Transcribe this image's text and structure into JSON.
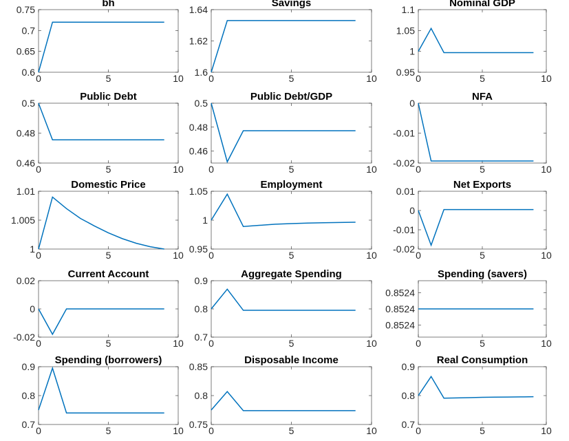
{
  "chart_data": [
    {
      "type": "line",
      "title": "bh",
      "x": [
        0,
        1,
        2,
        3,
        4,
        5,
        6,
        7,
        8,
        9
      ],
      "values": [
        0.6,
        0.72,
        0.72,
        0.72,
        0.72,
        0.72,
        0.72,
        0.72,
        0.72,
        0.72
      ],
      "color": "#0072bd",
      "xlim": [
        0,
        10
      ],
      "xticks": [
        0,
        5,
        10
      ],
      "ylim": [
        0.6,
        0.75
      ],
      "yticks": [
        0.6,
        0.65,
        0.7,
        0.75
      ]
    },
    {
      "type": "line",
      "title": "Savings",
      "x": [
        0,
        1,
        2,
        3,
        4,
        5,
        6,
        7,
        8,
        9
      ],
      "values": [
        1.6,
        1.633,
        1.633,
        1.633,
        1.633,
        1.633,
        1.633,
        1.633,
        1.633,
        1.633
      ],
      "color": "#0072bd",
      "xlim": [
        0,
        10
      ],
      "xticks": [
        0,
        5,
        10
      ],
      "ylim": [
        1.6,
        1.64
      ],
      "yticks": [
        1.6,
        1.62,
        1.64
      ]
    },
    {
      "type": "line",
      "title": "Nominal GDP",
      "x": [
        0,
        1,
        2,
        3,
        4,
        5,
        6,
        7,
        8,
        9
      ],
      "values": [
        1,
        1.055,
        0.997,
        0.997,
        0.997,
        0.997,
        0.997,
        0.997,
        0.997,
        0.997
      ],
      "color": "#0072bd",
      "xlim": [
        0,
        10
      ],
      "xticks": [
        0,
        5,
        10
      ],
      "ylim": [
        0.95,
        1.1
      ],
      "yticks": [
        0.95,
        1,
        1.05,
        1.1
      ]
    },
    {
      "type": "line",
      "title": "Public Debt",
      "x": [
        0,
        1,
        2,
        3,
        4,
        5,
        6,
        7,
        8,
        9
      ],
      "values": [
        0.5,
        0.4755,
        0.4755,
        0.4755,
        0.4755,
        0.4755,
        0.4755,
        0.4755,
        0.4755,
        0.4755
      ],
      "color": "#0072bd",
      "xlim": [
        0,
        10
      ],
      "xticks": [
        0,
        5,
        10
      ],
      "ylim": [
        0.46,
        0.5
      ],
      "yticks": [
        0.46,
        0.48,
        0.5
      ]
    },
    {
      "type": "line",
      "title": "Public Debt/GDP",
      "x": [
        0,
        1,
        2,
        3,
        4,
        5,
        6,
        7,
        8,
        9
      ],
      "values": [
        0.5,
        0.451,
        0.477,
        0.477,
        0.477,
        0.477,
        0.477,
        0.477,
        0.477,
        0.477
      ],
      "color": "#0072bd",
      "xlim": [
        0,
        10
      ],
      "xticks": [
        0,
        5,
        10
      ],
      "ylim": [
        0.45,
        0.5
      ],
      "yticks": [
        0.46,
        0.48,
        0.5
      ]
    },
    {
      "type": "line",
      "title": "NFA",
      "x": [
        0,
        1,
        2,
        3,
        4,
        5,
        6,
        7,
        8,
        9
      ],
      "values": [
        0,
        -0.0193,
        -0.0193,
        -0.0193,
        -0.0193,
        -0.0193,
        -0.0193,
        -0.0193,
        -0.0193,
        -0.0193
      ],
      "color": "#0072bd",
      "xlim": [
        0,
        10
      ],
      "xticks": [
        0,
        5,
        10
      ],
      "ylim": [
        -0.02,
        0
      ],
      "yticks": [
        -0.02,
        -0.01,
        0
      ]
    },
    {
      "type": "line",
      "title": "Domestic Price",
      "x": [
        0,
        1,
        2,
        3,
        4,
        5,
        6,
        7,
        8,
        9
      ],
      "values": [
        1,
        1.009,
        1.007,
        1.0053,
        1.004,
        1.0028,
        1.0018,
        1.001,
        1.0004,
        1
      ],
      "color": "#0072bd",
      "xlim": [
        0,
        10
      ],
      "xticks": [
        0,
        5,
        10
      ],
      "ylim": [
        1,
        1.01
      ],
      "yticks": [
        1,
        1.005,
        1.01
      ]
    },
    {
      "type": "line",
      "title": "Employment",
      "x": [
        0,
        1,
        2,
        3,
        4,
        5,
        6,
        7,
        8,
        9
      ],
      "values": [
        1,
        1.045,
        0.989,
        0.991,
        0.993,
        0.994,
        0.995,
        0.9955,
        0.996,
        0.9965
      ],
      "color": "#0072bd",
      "xlim": [
        0,
        10
      ],
      "xticks": [
        0,
        5,
        10
      ],
      "ylim": [
        0.95,
        1.05
      ],
      "yticks": [
        0.95,
        1,
        1.05
      ]
    },
    {
      "type": "line",
      "title": "Net Exports",
      "x": [
        0,
        1,
        2,
        3,
        4,
        5,
        6,
        7,
        8,
        9
      ],
      "values": [
        0,
        -0.018,
        0.0005,
        0.0005,
        0.0005,
        0.0005,
        0.0005,
        0.0005,
        0.0005,
        0.0005
      ],
      "color": "#0072bd",
      "xlim": [
        0,
        10
      ],
      "xticks": [
        0,
        5,
        10
      ],
      "ylim": [
        -0.02,
        0.01
      ],
      "yticks": [
        -0.02,
        -0.01,
        0,
        0.01
      ]
    },
    {
      "type": "line",
      "title": "Current Account",
      "x": [
        0,
        1,
        2,
        3,
        4,
        5,
        6,
        7,
        8,
        9
      ],
      "values": [
        0,
        -0.018,
        0,
        0,
        0,
        0,
        0,
        0,
        0,
        0
      ],
      "color": "#0072bd",
      "xlim": [
        0,
        10
      ],
      "xticks": [
        0,
        5,
        10
      ],
      "ylim": [
        -0.02,
        0.02
      ],
      "yticks": [
        -0.02,
        0,
        0.02
      ]
    },
    {
      "type": "line",
      "title": "Aggregate Spending",
      "x": [
        0,
        1,
        2,
        3,
        4,
        5,
        6,
        7,
        8,
        9
      ],
      "values": [
        0.8,
        0.87,
        0.795,
        0.795,
        0.795,
        0.795,
        0.795,
        0.795,
        0.795,
        0.795
      ],
      "color": "#0072bd",
      "xlim": [
        0,
        10
      ],
      "xticks": [
        0,
        5,
        10
      ],
      "ylim": [
        0.7,
        0.9
      ],
      "yticks": [
        0.7,
        0.8,
        0.9
      ]
    },
    {
      "type": "line",
      "title": "Spending (savers)",
      "x": [
        0,
        1,
        2,
        3,
        4,
        5,
        6,
        7,
        8,
        9
      ],
      "values": [
        0.8524,
        0.8524,
        0.8524,
        0.8524,
        0.8524,
        0.8524,
        0.8524,
        0.8524,
        0.8524,
        0.8524
      ],
      "color": "#0072bd",
      "xlim": [
        0,
        10
      ],
      "xticks": [
        0,
        5,
        10
      ],
      "ylim": [
        0.852365,
        0.852435
      ],
      "yticks": [
        {
          "value": 0.85238,
          "label": "0.8524"
        },
        0.8524,
        {
          "value": 0.85242,
          "label": "0.8524"
        }
      ]
    },
    {
      "type": "line",
      "title": "Spending (borrowers)",
      "x": [
        0,
        1,
        2,
        3,
        4,
        5,
        6,
        7,
        8,
        9
      ],
      "values": [
        0.75,
        0.895,
        0.74,
        0.74,
        0.74,
        0.74,
        0.74,
        0.74,
        0.74,
        0.74
      ],
      "color": "#0072bd",
      "xlim": [
        0,
        10
      ],
      "xticks": [
        0,
        5,
        10
      ],
      "ylim": [
        0.7,
        0.9
      ],
      "yticks": [
        0.7,
        0.8,
        0.9
      ]
    },
    {
      "type": "line",
      "title": "Disposable Income",
      "x": [
        0,
        1,
        2,
        3,
        4,
        5,
        6,
        7,
        8,
        9
      ],
      "values": [
        0.775,
        0.807,
        0.774,
        0.774,
        0.774,
        0.774,
        0.774,
        0.774,
        0.774,
        0.774
      ],
      "color": "#0072bd",
      "xlim": [
        0,
        10
      ],
      "xticks": [
        0,
        5,
        10
      ],
      "ylim": [
        0.75,
        0.85
      ],
      "yticks": [
        0.75,
        0.8,
        0.85
      ]
    },
    {
      "type": "line",
      "title": "Real Consumption",
      "x": [
        0,
        1,
        2,
        3,
        4,
        5,
        6,
        7,
        8,
        9
      ],
      "values": [
        0.8,
        0.866,
        0.791,
        0.792,
        0.793,
        0.794,
        0.7945,
        0.795,
        0.7955,
        0.796
      ],
      "color": "#0072bd",
      "xlim": [
        0,
        10
      ],
      "xticks": [
        0,
        5,
        10
      ],
      "ylim": [
        0.7,
        0.9
      ],
      "yticks": [
        0.7,
        0.8,
        0.9
      ]
    }
  ]
}
